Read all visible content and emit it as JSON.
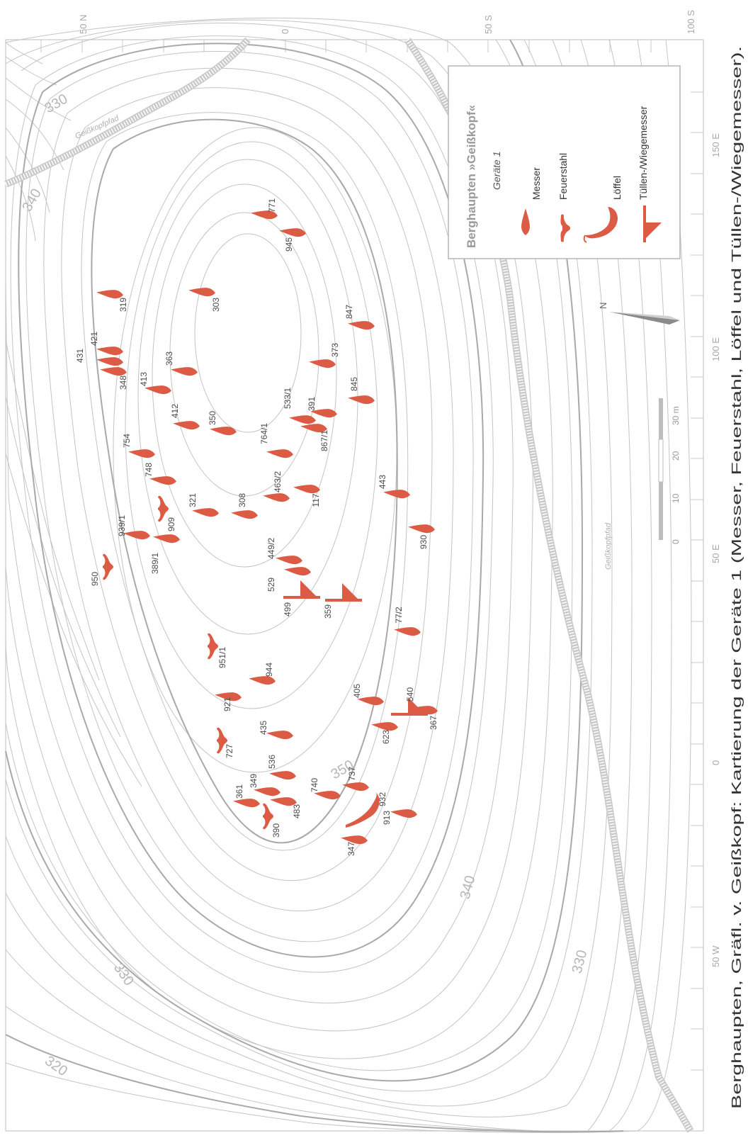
{
  "legend": {
    "title": "Berghaupten »Geißkopf«",
    "subtitle": "Geräte 1",
    "items": [
      {
        "label": "Messer",
        "icon": "knife-icon"
      },
      {
        "label": "Feuerstahl",
        "icon": "fire-steel-icon"
      },
      {
        "label": "Löffel",
        "icon": "spoon-icon"
      },
      {
        "label": "Tüllen-/Wiegemesser",
        "icon": "socket-rocker-knife-icon"
      }
    ]
  },
  "grid_labels": {
    "top": [
      "50 N",
      "0",
      "50 S",
      "100 S"
    ],
    "bottom": [
      "50 W",
      "0",
      "50 E",
      "100 E",
      "150 E"
    ]
  },
  "scale": {
    "ticks": [
      "0",
      "10",
      "20",
      "30 m"
    ]
  },
  "contour_labels": [
    "330",
    "340",
    "350",
    "340",
    "330",
    "330",
    "320"
  ],
  "path_labels": [
    "Geißkopfpfad",
    "Geißkopfpfad"
  ],
  "north_label": "N",
  "caption": "Berghaupten, Gräfl. v. Geißkopf: Kartierung der Geräte 1 (Messer, Feuerstahl, Löffel und Tüllen-/Wiegemesser).",
  "colors": {
    "symbol": "#dc5b45",
    "contour": "#c4c4c4",
    "bold_contour": "#a9a9a9"
  },
  "finds": {
    "knives": [
      "771",
      "945",
      "303",
      "319",
      "421",
      "431",
      "348",
      "363",
      "413",
      "412",
      "350",
      "533/1",
      "391",
      "867/1",
      "764/1",
      "373",
      "847",
      "845",
      "754",
      "748",
      "463/2",
      "117",
      "443",
      "321",
      "308",
      "939/1",
      "389/1",
      "449/2",
      "529",
      "930",
      "77/2",
      "944",
      "921",
      "405",
      "540",
      "435",
      "623",
      "536",
      "349",
      "361",
      "740",
      "737",
      "483",
      "913",
      "347"
    ],
    "fire_steels": [
      "909",
      "950",
      "951/1",
      "727",
      "390"
    ],
    "spoons": [
      "932"
    ],
    "socket_knives": [
      "499",
      "359",
      "367"
    ]
  }
}
